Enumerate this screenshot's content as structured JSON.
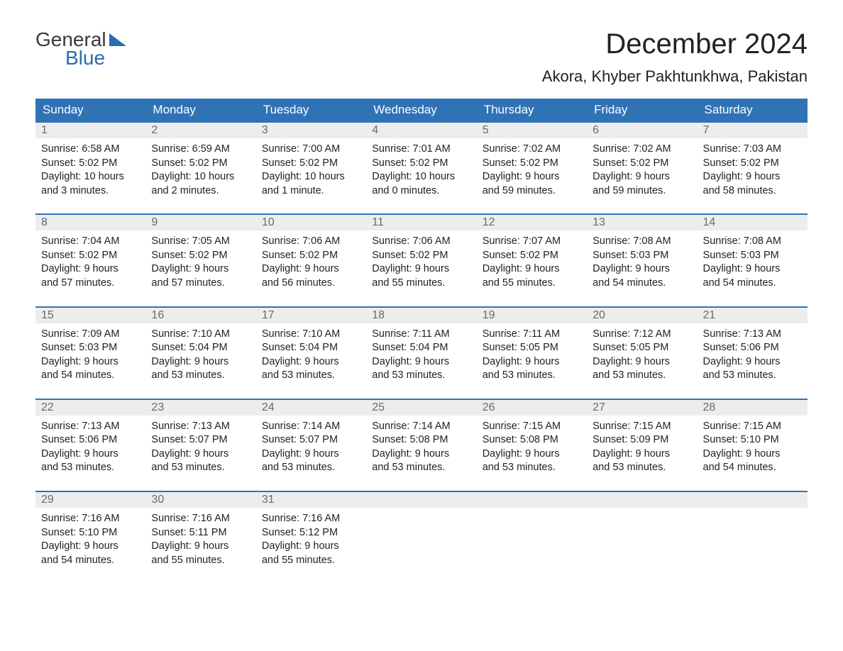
{
  "logo": {
    "general": "General",
    "blue": "Blue"
  },
  "title": "December 2024",
  "location": "Akora, Khyber Pakhtunkhwa, Pakistan",
  "colors": {
    "header_bg": "#2f73b6",
    "header_text": "#ffffff",
    "daynum_bg": "#ededed",
    "daynum_text": "#6a6a6a",
    "row_border": "#2f73b6",
    "logo_blue": "#2b6cb0",
    "body_text": "#222222",
    "page_bg": "#ffffff"
  },
  "day_headers": [
    "Sunday",
    "Monday",
    "Tuesday",
    "Wednesday",
    "Thursday",
    "Friday",
    "Saturday"
  ],
  "weeks": [
    [
      {
        "n": "1",
        "sr": "Sunrise: 6:58 AM",
        "ss": "Sunset: 5:02 PM",
        "d1": "Daylight: 10 hours",
        "d2": "and 3 minutes."
      },
      {
        "n": "2",
        "sr": "Sunrise: 6:59 AM",
        "ss": "Sunset: 5:02 PM",
        "d1": "Daylight: 10 hours",
        "d2": "and 2 minutes."
      },
      {
        "n": "3",
        "sr": "Sunrise: 7:00 AM",
        "ss": "Sunset: 5:02 PM",
        "d1": "Daylight: 10 hours",
        "d2": "and 1 minute."
      },
      {
        "n": "4",
        "sr": "Sunrise: 7:01 AM",
        "ss": "Sunset: 5:02 PM",
        "d1": "Daylight: 10 hours",
        "d2": "and 0 minutes."
      },
      {
        "n": "5",
        "sr": "Sunrise: 7:02 AM",
        "ss": "Sunset: 5:02 PM",
        "d1": "Daylight: 9 hours",
        "d2": "and 59 minutes."
      },
      {
        "n": "6",
        "sr": "Sunrise: 7:02 AM",
        "ss": "Sunset: 5:02 PM",
        "d1": "Daylight: 9 hours",
        "d2": "and 59 minutes."
      },
      {
        "n": "7",
        "sr": "Sunrise: 7:03 AM",
        "ss": "Sunset: 5:02 PM",
        "d1": "Daylight: 9 hours",
        "d2": "and 58 minutes."
      }
    ],
    [
      {
        "n": "8",
        "sr": "Sunrise: 7:04 AM",
        "ss": "Sunset: 5:02 PM",
        "d1": "Daylight: 9 hours",
        "d2": "and 57 minutes."
      },
      {
        "n": "9",
        "sr": "Sunrise: 7:05 AM",
        "ss": "Sunset: 5:02 PM",
        "d1": "Daylight: 9 hours",
        "d2": "and 57 minutes."
      },
      {
        "n": "10",
        "sr": "Sunrise: 7:06 AM",
        "ss": "Sunset: 5:02 PM",
        "d1": "Daylight: 9 hours",
        "d2": "and 56 minutes."
      },
      {
        "n": "11",
        "sr": "Sunrise: 7:06 AM",
        "ss": "Sunset: 5:02 PM",
        "d1": "Daylight: 9 hours",
        "d2": "and 55 minutes."
      },
      {
        "n": "12",
        "sr": "Sunrise: 7:07 AM",
        "ss": "Sunset: 5:02 PM",
        "d1": "Daylight: 9 hours",
        "d2": "and 55 minutes."
      },
      {
        "n": "13",
        "sr": "Sunrise: 7:08 AM",
        "ss": "Sunset: 5:03 PM",
        "d1": "Daylight: 9 hours",
        "d2": "and 54 minutes."
      },
      {
        "n": "14",
        "sr": "Sunrise: 7:08 AM",
        "ss": "Sunset: 5:03 PM",
        "d1": "Daylight: 9 hours",
        "d2": "and 54 minutes."
      }
    ],
    [
      {
        "n": "15",
        "sr": "Sunrise: 7:09 AM",
        "ss": "Sunset: 5:03 PM",
        "d1": "Daylight: 9 hours",
        "d2": "and 54 minutes."
      },
      {
        "n": "16",
        "sr": "Sunrise: 7:10 AM",
        "ss": "Sunset: 5:04 PM",
        "d1": "Daylight: 9 hours",
        "d2": "and 53 minutes."
      },
      {
        "n": "17",
        "sr": "Sunrise: 7:10 AM",
        "ss": "Sunset: 5:04 PM",
        "d1": "Daylight: 9 hours",
        "d2": "and 53 minutes."
      },
      {
        "n": "18",
        "sr": "Sunrise: 7:11 AM",
        "ss": "Sunset: 5:04 PM",
        "d1": "Daylight: 9 hours",
        "d2": "and 53 minutes."
      },
      {
        "n": "19",
        "sr": "Sunrise: 7:11 AM",
        "ss": "Sunset: 5:05 PM",
        "d1": "Daylight: 9 hours",
        "d2": "and 53 minutes."
      },
      {
        "n": "20",
        "sr": "Sunrise: 7:12 AM",
        "ss": "Sunset: 5:05 PM",
        "d1": "Daylight: 9 hours",
        "d2": "and 53 minutes."
      },
      {
        "n": "21",
        "sr": "Sunrise: 7:13 AM",
        "ss": "Sunset: 5:06 PM",
        "d1": "Daylight: 9 hours",
        "d2": "and 53 minutes."
      }
    ],
    [
      {
        "n": "22",
        "sr": "Sunrise: 7:13 AM",
        "ss": "Sunset: 5:06 PM",
        "d1": "Daylight: 9 hours",
        "d2": "and 53 minutes."
      },
      {
        "n": "23",
        "sr": "Sunrise: 7:13 AM",
        "ss": "Sunset: 5:07 PM",
        "d1": "Daylight: 9 hours",
        "d2": "and 53 minutes."
      },
      {
        "n": "24",
        "sr": "Sunrise: 7:14 AM",
        "ss": "Sunset: 5:07 PM",
        "d1": "Daylight: 9 hours",
        "d2": "and 53 minutes."
      },
      {
        "n": "25",
        "sr": "Sunrise: 7:14 AM",
        "ss": "Sunset: 5:08 PM",
        "d1": "Daylight: 9 hours",
        "d2": "and 53 minutes."
      },
      {
        "n": "26",
        "sr": "Sunrise: 7:15 AM",
        "ss": "Sunset: 5:08 PM",
        "d1": "Daylight: 9 hours",
        "d2": "and 53 minutes."
      },
      {
        "n": "27",
        "sr": "Sunrise: 7:15 AM",
        "ss": "Sunset: 5:09 PM",
        "d1": "Daylight: 9 hours",
        "d2": "and 53 minutes."
      },
      {
        "n": "28",
        "sr": "Sunrise: 7:15 AM",
        "ss": "Sunset: 5:10 PM",
        "d1": "Daylight: 9 hours",
        "d2": "and 54 minutes."
      }
    ],
    [
      {
        "n": "29",
        "sr": "Sunrise: 7:16 AM",
        "ss": "Sunset: 5:10 PM",
        "d1": "Daylight: 9 hours",
        "d2": "and 54 minutes."
      },
      {
        "n": "30",
        "sr": "Sunrise: 7:16 AM",
        "ss": "Sunset: 5:11 PM",
        "d1": "Daylight: 9 hours",
        "d2": "and 55 minutes."
      },
      {
        "n": "31",
        "sr": "Sunrise: 7:16 AM",
        "ss": "Sunset: 5:12 PM",
        "d1": "Daylight: 9 hours",
        "d2": "and 55 minutes."
      },
      null,
      null,
      null,
      null
    ]
  ]
}
